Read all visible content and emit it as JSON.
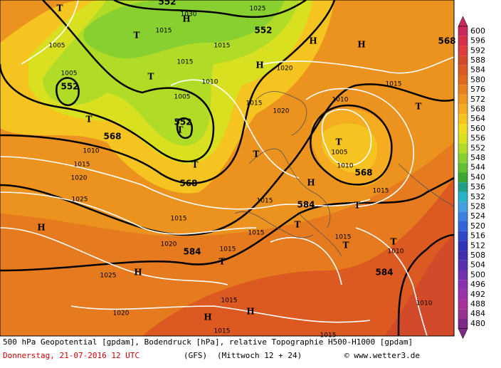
{
  "map": {
    "geopotential_labels": [
      552,
      552,
      552,
      552,
      568,
      568,
      568,
      584,
      584,
      584,
      568
    ],
    "pressure_labels": [
      1030,
      1025,
      1015,
      1005,
      1005,
      1015,
      1015,
      1020,
      1010,
      1005,
      1015,
      1020,
      1010,
      1015,
      1010,
      1015,
      1020,
      1025,
      1005,
      1010,
      1015,
      1015,
      1015,
      1015,
      1015,
      1020,
      1015,
      1010,
      1025,
      1020,
      1015,
      1010,
      1015,
      1015
    ],
    "high_centers": [
      "H",
      "H",
      "H",
      "H",
      "H",
      "H",
      "H",
      "H",
      "H"
    ],
    "low_centers": [
      "T",
      "T",
      "T",
      "T",
      "T",
      "T",
      "T",
      "T",
      "T",
      "T",
      "T",
      "T",
      "T",
      "T"
    ]
  },
  "colorbar": {
    "ticks": [
      600,
      596,
      592,
      588,
      584,
      580,
      576,
      572,
      568,
      564,
      560,
      556,
      552,
      548,
      544,
      540,
      536,
      532,
      528,
      524,
      520,
      516,
      512,
      508,
      504,
      500,
      496,
      492,
      488,
      484,
      480
    ],
    "colors": [
      "#c8285a",
      "#d8304a",
      "#e03c3c",
      "#d24a2a",
      "#dc5a22",
      "#e06a1e",
      "#e8801e",
      "#f0961e",
      "#f5ac20",
      "#f5c420",
      "#f0dc1e",
      "#d8e020",
      "#b0dc28",
      "#88d030",
      "#60c030",
      "#38a830",
      "#20a088",
      "#28b4c8",
      "#40a0e0",
      "#3c80e0",
      "#3464d8",
      "#3048c8",
      "#3034b4",
      "#4030b0",
      "#5830b0",
      "#7030b0",
      "#8830b0",
      "#9c30a8",
      "#a83098",
      "#983090",
      "#802888"
    ]
  },
  "footer": {
    "description": "500 hPa Geopotential [gpdam], Bodendruck [hPa], relative Topographie H500-H1000 [gpdam]",
    "date": "Donnerstag, 21-07-2016  12 UTC",
    "model": "(GFS)",
    "run": "(Mittwoch 12 + 24)",
    "source": "© www.wetter3.de"
  }
}
